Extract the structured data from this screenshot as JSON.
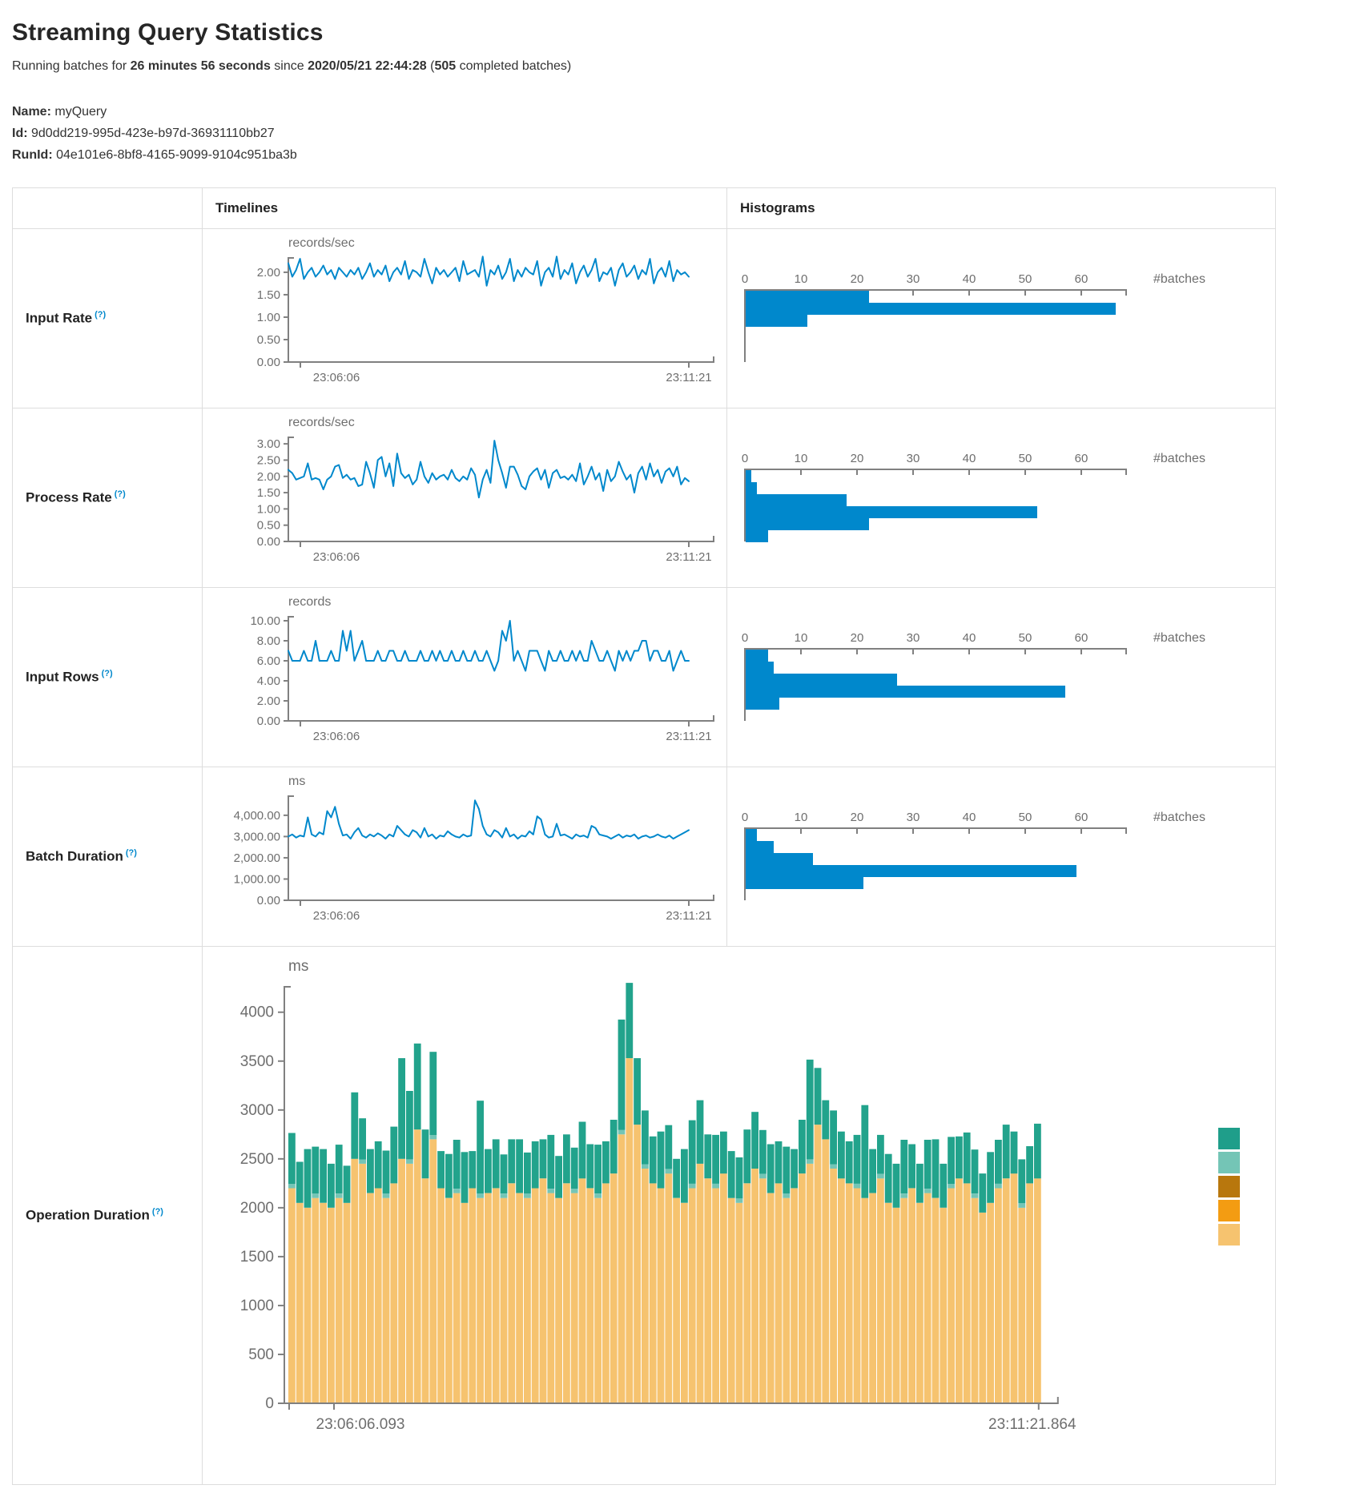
{
  "header": {
    "title": "Streaming Query Statistics",
    "running_pre": "Running batches for ",
    "running_duration": "26 minutes 56 seconds",
    "running_mid": " since ",
    "running_since": "2020/05/21 22:44:28",
    "paren_open": " (",
    "completed_count": "505",
    "paren_close": " completed batches)"
  },
  "query": {
    "name_label": "Name:",
    "name": "myQuery",
    "id_label": "Id:",
    "id": "9d0dd219-995d-423e-b97d-36931110bb27",
    "runid_label": "RunId:",
    "runid": "04e101e6-8bf8-4165-9099-9104c951ba3b"
  },
  "table": {
    "timelines_header": "Timelines",
    "histograms_header": "Histograms"
  },
  "rows": [
    {
      "label": "Input Rate",
      "help": "(?)"
    },
    {
      "label": "Process Rate",
      "help": "(?)"
    },
    {
      "label": "Input Rows",
      "help": "(?)"
    },
    {
      "label": "Batch Duration",
      "help": "(?)"
    },
    {
      "label": "Operation Duration",
      "help": "(?)"
    }
  ],
  "colors": {
    "line_blue": "#0088cc",
    "hist_blue": "#0088cc",
    "axis_gray": "#808080",
    "op_orange": "#f6c36f",
    "op_lightteal": "#74c5b6",
    "op_teal": "#22a38c"
  },
  "chart_data": {
    "input_rate": {
      "type": "line",
      "title": "records/sec",
      "x_start": "23:06:06",
      "x_end": "23:11:21",
      "y_axis_max": 2.32,
      "y_ticks": [
        {
          "v": 0,
          "label": "0.00"
        },
        {
          "v": 0.5,
          "label": "0.50"
        },
        {
          "v": 1,
          "label": "1.00"
        },
        {
          "v": 1.5,
          "label": "1.50"
        },
        {
          "v": 2,
          "label": "2.00"
        }
      ],
      "values": [
        2.2,
        1.9,
        2.05,
        2.3,
        1.85,
        2.0,
        2.1,
        1.9,
        2.0,
        2.15,
        1.95,
        2.05,
        1.85,
        2.1,
        2.0,
        1.9,
        2.05,
        1.95,
        2.1,
        1.85,
        2.0,
        2.2,
        1.9,
        2.05,
        1.95,
        2.15,
        1.8,
        2.0,
        2.1,
        1.95,
        2.25,
        1.85,
        2.05,
        2.0,
        1.9,
        2.3,
        2.0,
        1.75,
        2.1,
        1.95,
        2.05,
        1.9,
        2.0,
        2.1,
        1.8,
        2.25,
        1.95,
        2.0,
        2.05,
        1.9,
        2.35,
        1.7,
        2.05,
        1.95,
        2.15,
        1.85,
        2.0,
        2.3,
        1.8,
        2.05,
        1.9,
        2.1,
        2.0,
        1.95,
        2.25,
        1.7,
        2.0,
        2.1,
        1.9,
        2.35,
        1.85,
        2.05,
        1.95,
        2.2,
        1.75,
        2.0,
        2.15,
        1.9,
        2.05,
        2.3,
        1.8,
        2.0,
        1.95,
        2.1,
        1.7,
        2.05,
        2.2,
        1.9,
        2.0,
        2.15,
        1.85,
        2.05,
        1.95,
        2.3,
        1.75,
        2.0,
        2.1,
        1.9,
        2.25,
        1.8,
        2.05,
        1.95,
        2.0,
        1.9
      ],
      "histogram": {
        "type": "bar",
        "axis_label": "#batches",
        "x_ticks": [
          0,
          10,
          20,
          30,
          40,
          50,
          60
        ],
        "x_axis_max": 68,
        "bars": [
          22,
          66,
          11
        ]
      }
    },
    "process_rate": {
      "type": "line",
      "title": "records/sec",
      "x_start": "23:06:06",
      "x_end": "23:11:21",
      "y_axis_max": 3.2,
      "y_ticks": [
        {
          "v": 0,
          "label": "0.00"
        },
        {
          "v": 0.5,
          "label": "0.50"
        },
        {
          "v": 1,
          "label": "1.00"
        },
        {
          "v": 1.5,
          "label": "1.50"
        },
        {
          "v": 2,
          "label": "2.00"
        },
        {
          "v": 2.5,
          "label": "2.50"
        },
        {
          "v": 3,
          "label": "3.00"
        }
      ],
      "values": [
        2.2,
        2.1,
        1.9,
        1.95,
        2.0,
        2.4,
        1.9,
        1.95,
        1.9,
        1.6,
        1.9,
        2.0,
        2.3,
        2.35,
        1.95,
        2.05,
        1.9,
        1.95,
        1.7,
        1.75,
        2.45,
        2.1,
        1.65,
        2.5,
        2.6,
        2.0,
        2.4,
        1.7,
        2.7,
        2.1,
        1.95,
        2.05,
        1.75,
        1.9,
        2.45,
        2.0,
        1.8,
        2.1,
        1.9,
        2.0,
        2.05,
        1.9,
        2.2,
        1.95,
        1.85,
        2.0,
        1.9,
        2.25,
        2.05,
        1.35,
        1.9,
        2.2,
        1.8,
        3.1,
        2.5,
        2.1,
        1.65,
        2.3,
        2.3,
        2.05,
        1.7,
        1.6,
        2.0,
        2.15,
        2.25,
        1.9,
        2.2,
        1.65,
        2.1,
        2.2,
        1.95,
        2.0,
        1.9,
        2.05,
        1.85,
        2.4,
        1.75,
        2.0,
        2.3,
        1.9,
        2.1,
        1.55,
        2.2,
        1.85,
        2.0,
        2.45,
        2.15,
        1.9,
        2.05,
        1.5,
        2.1,
        2.3,
        1.9,
        2.4,
        2.0,
        2.2,
        1.8,
        2.15,
        2.25,
        2.0,
        2.3,
        1.75,
        1.95,
        1.85
      ],
      "histogram": {
        "type": "bar",
        "axis_label": "#batches",
        "x_ticks": [
          0,
          10,
          20,
          30,
          40,
          50,
          60
        ],
        "x_axis_max": 68,
        "bars": [
          1,
          2,
          18,
          52,
          22,
          4
        ]
      }
    },
    "input_rows": {
      "type": "line",
      "title": "records",
      "x_start": "23:06:06",
      "x_end": "23:11:21",
      "y_axis_max": 10.4,
      "y_ticks": [
        {
          "v": 0,
          "label": "0.00"
        },
        {
          "v": 2,
          "label": "2.00"
        },
        {
          "v": 4,
          "label": "4.00"
        },
        {
          "v": 6,
          "label": "6.00"
        },
        {
          "v": 8,
          "label": "8.00"
        },
        {
          "v": 10,
          "label": "10.00"
        }
      ],
      "values": [
        7,
        6,
        6,
        6,
        7,
        6,
        6,
        8,
        6,
        6,
        6,
        7,
        6,
        6,
        9,
        7,
        9,
        6,
        7,
        8,
        6,
        6,
        6,
        7,
        6,
        6,
        7,
        7,
        6,
        6,
        7,
        6,
        6,
        6,
        7,
        6,
        6,
        7,
        6,
        7,
        6,
        6,
        7,
        6,
        6,
        7,
        6,
        6,
        7,
        6,
        6,
        7,
        6,
        5,
        6,
        9,
        8,
        10,
        6,
        7,
        6,
        5,
        7,
        7,
        7,
        6,
        5,
        7,
        6,
        6,
        7,
        6,
        6,
        7,
        6,
        7,
        6,
        6,
        8,
        7,
        6,
        6,
        7,
        6,
        5,
        7,
        6,
        7,
        6,
        7,
        7,
        8,
        8,
        6,
        7,
        7,
        6,
        6,
        7,
        5,
        6,
        7,
        6,
        6
      ],
      "histogram": {
        "type": "bar",
        "axis_label": "#batches",
        "x_ticks": [
          0,
          10,
          20,
          30,
          40,
          50,
          60
        ],
        "x_axis_max": 68,
        "bars": [
          4,
          5,
          27,
          57,
          6
        ]
      }
    },
    "batch_duration": {
      "type": "line",
      "title": "ms",
      "x_start": "23:06:06",
      "x_end": "23:11:21",
      "y_axis_max": 4900,
      "y_ticks": [
        {
          "v": 0,
          "label": "0.00"
        },
        {
          "v": 1000,
          "label": "1,000.00"
        },
        {
          "v": 2000,
          "label": "2,000.00"
        },
        {
          "v": 3000,
          "label": "3,000.00"
        },
        {
          "v": 4000,
          "label": "4,000.00"
        }
      ],
      "values": [
        3000,
        3100,
        2950,
        3050,
        3000,
        3900,
        3100,
        3000,
        3200,
        3100,
        4200,
        3900,
        4400,
        3600,
        3050,
        3100,
        2900,
        3200,
        3400,
        3050,
        2950,
        3100,
        3000,
        3150,
        3050,
        2900,
        3100,
        3000,
        3500,
        3300,
        3100,
        3000,
        3300,
        3200,
        2950,
        3400,
        3000,
        3100,
        2900,
        3050,
        3000,
        3250,
        3100,
        3000,
        2950,
        3100,
        3000,
        3050,
        4700,
        4300,
        3500,
        3100,
        3000,
        3300,
        3200,
        2950,
        3400,
        3000,
        3100,
        2900,
        3050,
        3000,
        3250,
        3100,
        3950,
        3800,
        3100,
        2950,
        3000,
        3600,
        3050,
        3100,
        3000,
        2900,
        3100,
        3000,
        3050,
        2950,
        3500,
        3400,
        3100,
        3050,
        3000,
        2900,
        3000,
        3100,
        2950,
        3050,
        3000,
        3100,
        2900,
        3000,
        3050,
        2950,
        3000,
        3100,
        3000,
        2950,
        3050,
        2900,
        3000,
        3100,
        3200,
        3300
      ],
      "histogram": {
        "type": "bar",
        "axis_label": "#batches",
        "x_ticks": [
          0,
          10,
          20,
          30,
          40,
          50,
          60
        ],
        "x_axis_max": 68,
        "bars": [
          2,
          5,
          12,
          59,
          21
        ]
      }
    },
    "operation_duration": {
      "type": "stacked-bar",
      "title": "ms",
      "x_start": "23:06:06.093",
      "x_end": "23:11:21.864",
      "y_axis_max": 4260,
      "y_ticks": [
        {
          "v": 0,
          "label": "0"
        },
        {
          "v": 500,
          "label": "500"
        },
        {
          "v": 1000,
          "label": "1000"
        },
        {
          "v": 1500,
          "label": "1500"
        },
        {
          "v": 2000,
          "label": "2000"
        },
        {
          "v": 2500,
          "label": "2500"
        },
        {
          "v": 3000,
          "label": "3000"
        },
        {
          "v": 3500,
          "label": "3500"
        },
        {
          "v": 4000,
          "label": "4000"
        }
      ],
      "series": [
        {
          "name": "bottom-orange",
          "color": "#f6c36f",
          "values": [
            2200,
            2050,
            2000,
            2100,
            2050,
            2000,
            2100,
            2050,
            2500,
            2450,
            2150,
            2200,
            2100,
            2250,
            2500,
            2450,
            2800,
            2300,
            2700,
            2200,
            2100,
            2150,
            2050,
            2200,
            2100,
            2150,
            2200,
            2100,
            2250,
            2150,
            2100,
            2200,
            2300,
            2150,
            2100,
            2250,
            2150,
            2300,
            2200,
            2100,
            2250,
            2350,
            2750,
            3530,
            2850,
            2400,
            2250,
            2200,
            2350,
            2100,
            2050,
            2200,
            2450,
            2300,
            2200,
            2350,
            2100,
            2050,
            2250,
            2400,
            2300,
            2150,
            2250,
            2100,
            2200,
            2350,
            2450,
            2850,
            2700,
            2400,
            2300,
            2250,
            2200,
            2100,
            2150,
            2300,
            2050,
            2000,
            2100,
            2200,
            2050,
            2150,
            2100,
            2000,
            2200,
            2300,
            2250,
            2100,
            1950,
            2050,
            2200,
            2300,
            2350,
            2000,
            2250,
            2300
          ]
        },
        {
          "name": "middle-lightteal",
          "color": "#74c5b6",
          "values": [
            45,
            0,
            0,
            45,
            0,
            0,
            45,
            0,
            0,
            45,
            0,
            0,
            45,
            0,
            0,
            45,
            0,
            0,
            45,
            0,
            0,
            45,
            0,
            0,
            45,
            0,
            0,
            45,
            0,
            0,
            45,
            0,
            0,
            45,
            0,
            0,
            45,
            0,
            0,
            45,
            0,
            0,
            45,
            0,
            0,
            45,
            0,
            0,
            45,
            0,
            0,
            45,
            0,
            0,
            45,
            0,
            0,
            45,
            0,
            0,
            45,
            0,
            0,
            45,
            0,
            0,
            45,
            0,
            0,
            45,
            0,
            0,
            45,
            0,
            0,
            45,
            0,
            0,
            45,
            0,
            0,
            45,
            0,
            0,
            45,
            0,
            0,
            45,
            0,
            0,
            45,
            0,
            0,
            45,
            0,
            0
          ]
        },
        {
          "name": "top-teal",
          "color": "#22a38c",
          "values": [
            520,
            420,
            600,
            480,
            550,
            450,
            500,
            380,
            680,
            420,
            450,
            480,
            440,
            580,
            1030,
            700,
            880,
            500,
            850,
            380,
            450,
            500,
            520,
            380,
            950,
            450,
            500,
            400,
            450,
            550,
            420,
            480,
            400,
            550,
            430,
            500,
            420,
            580,
            450,
            500,
            430,
            550,
            1130,
            770,
            680,
            550,
            480,
            580,
            450,
            400,
            550,
            650,
            650,
            450,
            500,
            430,
            480,
            420,
            550,
            580,
            450,
            500,
            430,
            480,
            400,
            550,
            1020,
            580,
            400,
            550,
            480,
            430,
            500,
            950,
            450,
            400,
            500,
            450,
            550,
            450,
            400,
            500,
            600,
            450,
            480,
            430,
            520,
            450,
            400,
            520,
            450,
            550,
            430,
            450,
            380,
            560
          ]
        }
      ],
      "legend_colors": [
        "#1f9e8a",
        "#74c5b6",
        "#b8770d",
        "#f39c12",
        "#f6c36f"
      ]
    }
  }
}
